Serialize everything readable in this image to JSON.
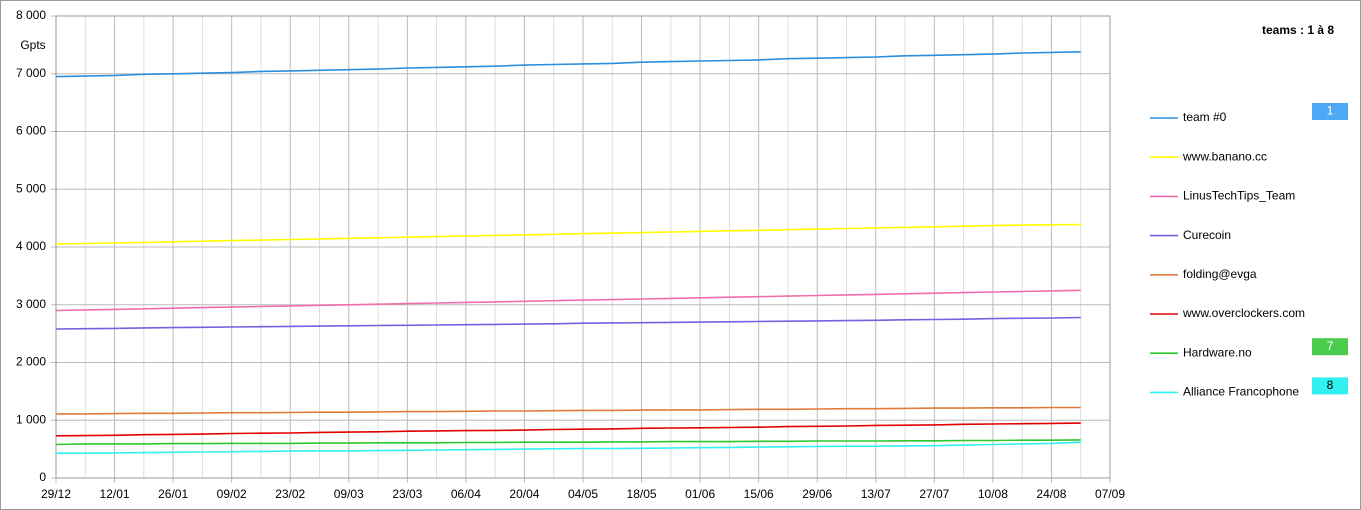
{
  "chart_data": {
    "type": "line",
    "title": "teams : 1 à 8",
    "y_label": "Gpts",
    "grid": true,
    "categories": [
      "29/12",
      null,
      "12/01",
      null,
      "26/01",
      null,
      "09/02",
      null,
      "23/02",
      null,
      "09/03",
      null,
      "23/03",
      null,
      "06/04",
      null,
      "20/04",
      null,
      "04/05",
      null,
      "18/05",
      null,
      "01/06",
      null,
      "15/06",
      null,
      "29/06",
      null,
      "13/07",
      null,
      "27/07",
      null,
      "10/08",
      null,
      "24/08",
      null,
      "07/09"
    ],
    "ylim": [
      0,
      8000
    ],
    "yticks": [
      0,
      {
        "value": 1000,
        "label": "1 000"
      },
      {
        "value": 2000,
        "label": "2 000"
      },
      {
        "value": 3000,
        "label": "3 000"
      },
      {
        "value": 4000,
        "label": "4 000"
      },
      {
        "value": 5000,
        "label": "5 000"
      },
      {
        "value": 6000,
        "label": "6 000"
      },
      {
        "value": 7000,
        "label": "7 000"
      },
      {
        "value": 8000,
        "label": "8 000"
      }
    ],
    "series": [
      {
        "name": "team #0",
        "color": "#2a8fde",
        "badge": {
          "label": "1",
          "color": "#4da8f5",
          "text_color": "#ffffff"
        },
        "values": [
          6950,
          6960,
          6970,
          6990,
          7000,
          7010,
          7020,
          7040,
          7050,
          7060,
          7070,
          7080,
          7100,
          7110,
          7120,
          7130,
          7150,
          7160,
          7170,
          7180,
          7200,
          7210,
          7220,
          7230,
          7240,
          7260,
          7270,
          7280,
          7290,
          7310,
          7320,
          7330,
          7340,
          7360,
          7370,
          7380,
          null
        ]
      },
      {
        "name": "www.banano.cc",
        "color": "#ffff00",
        "values": [
          4050,
          4060,
          4070,
          4080,
          4090,
          4100,
          4110,
          4120,
          4130,
          4140,
          4150,
          4160,
          4170,
          4180,
          4190,
          4200,
          4210,
          4220,
          4230,
          4240,
          4250,
          4260,
          4270,
          4280,
          4290,
          4300,
          4310,
          4320,
          4330,
          4340,
          4350,
          4360,
          4370,
          4380,
          4385,
          4390,
          null
        ]
      },
      {
        "name": "LinusTechTips_Team",
        "color": "#f06eaa",
        "values": [
          2900,
          2910,
          2920,
          2930,
          2940,
          2950,
          2960,
          2970,
          2980,
          2990,
          3000,
          3010,
          3020,
          3030,
          3040,
          3050,
          3060,
          3070,
          3080,
          3090,
          3100,
          3110,
          3120,
          3130,
          3140,
          3150,
          3160,
          3170,
          3180,
          3190,
          3200,
          3210,
          3220,
          3230,
          3240,
          3250,
          null
        ]
      },
      {
        "name": "Curecoin",
        "color": "#7a5de0",
        "values": [
          2580,
          2585,
          2590,
          2600,
          2605,
          2610,
          2615,
          2620,
          2625,
          2630,
          2635,
          2640,
          2645,
          2650,
          2655,
          2660,
          2665,
          2670,
          2680,
          2685,
          2690,
          2695,
          2700,
          2705,
          2710,
          2715,
          2720,
          2725,
          2730,
          2740,
          2745,
          2750,
          2760,
          2765,
          2770,
          2780,
          null
        ]
      },
      {
        "name": "folding@evga",
        "color": "#e07b39",
        "values": [
          1110,
          1110,
          1115,
          1120,
          1120,
          1125,
          1130,
          1130,
          1135,
          1140,
          1140,
          1145,
          1150,
          1150,
          1155,
          1160,
          1160,
          1165,
          1170,
          1170,
          1175,
          1180,
          1180,
          1185,
          1190,
          1190,
          1195,
          1200,
          1200,
          1205,
          1210,
          1210,
          1215,
          1215,
          1220,
          1220,
          null
        ]
      },
      {
        "name": "www.overclockers.com",
        "color": "#e00000",
        "values": [
          730,
          735,
          740,
          750,
          755,
          760,
          770,
          775,
          780,
          790,
          795,
          800,
          810,
          815,
          820,
          825,
          830,
          840,
          845,
          850,
          860,
          865,
          870,
          875,
          880,
          890,
          895,
          900,
          910,
          915,
          920,
          930,
          935,
          940,
          945,
          950,
          null
        ]
      },
      {
        "name": "Hardware.no",
        "color": "#2ec82e",
        "badge": {
          "label": "7",
          "color": "#4ccc4c",
          "text_color": "#ffffff"
        },
        "values": [
          580,
          590,
          590,
          590,
          595,
          595,
          600,
          600,
          600,
          605,
          605,
          610,
          610,
          610,
          615,
          615,
          620,
          620,
          620,
          625,
          625,
          630,
          630,
          630,
          635,
          635,
          640,
          640,
          640,
          645,
          645,
          650,
          650,
          655,
          655,
          660,
          null
        ]
      },
      {
        "name": "Alliance Francophone",
        "color": "#33f0f0",
        "badge": {
          "label": "8",
          "color": "#33f0f0",
          "text_color": "#000000"
        },
        "values": [
          430,
          430,
          435,
          440,
          445,
          450,
          455,
          460,
          465,
          470,
          470,
          475,
          480,
          485,
          490,
          495,
          500,
          505,
          510,
          510,
          515,
          520,
          525,
          530,
          535,
          540,
          545,
          550,
          550,
          555,
          560,
          570,
          580,
          590,
          600,
          620,
          null
        ]
      }
    ]
  }
}
